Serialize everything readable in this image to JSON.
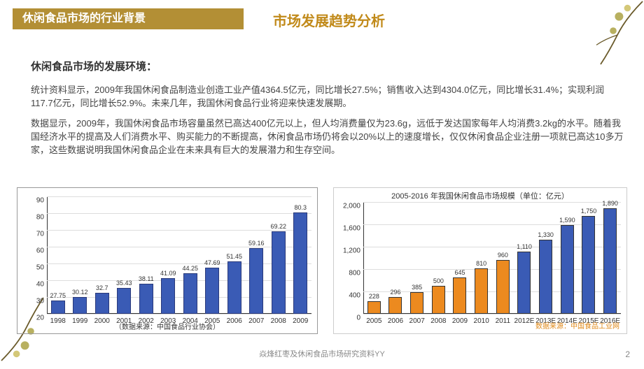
{
  "header_bar": "休闲食品市场的行业背景",
  "title2": "市场发展趋势分析",
  "subheading": "休闲食品市场的发展环境：",
  "para1": "统计资料显示，2009年我国休闲食品制造业创造工业产值4364.5亿元，同比增长27.5%；销售收入达到4304.0亿元，同比增长31.4%；实现利润117.7亿元，同比增长52.9%。未来几年，我国休闲食品行业将迎来快速发展期。",
  "para2": "数据显示，2009年，我国休闲食品市场容量虽然已高达400亿元以上，但人均消费量仅为23.6g，远低于发达国家每年人均消费3.2kg的水平。随着我国经济水平的提高及人们消费水平、购买能力的不断提高，休闲食品市场仍将会以20%以上的速度增长，仅仅休闲食品企业注册一项就已高达10多万家，这些数据说明我国休闲食品企业在未来具有巨大的发展潜力和生存空间。",
  "chart1": {
    "type": "bar",
    "categories": [
      "1998",
      "1999",
      "2000",
      "2001",
      "2002",
      "2003",
      "2004",
      "2005",
      "2006",
      "2007",
      "2008",
      "2009"
    ],
    "values": [
      27.75,
      30.12,
      32.7,
      35.43,
      38.11,
      41.09,
      44.25,
      47.69,
      51.45,
      59.16,
      69.22,
      80.3
    ],
    "value_labels": [
      "27.75",
      "30.12",
      "32.7",
      "35.43",
      "38.11",
      "41.09",
      "44.25",
      "47.69",
      "51.45",
      "59.16",
      "69.22",
      "80.3"
    ],
    "bar_color": "#3a5bb5",
    "bar_border": "#2a3a7a",
    "ylim": [
      20,
      90
    ],
    "ytick_step": 10,
    "grid_color": "#dddddd",
    "source": "（数据来源：中国食品行业协会）"
  },
  "chart2": {
    "type": "bar",
    "title": "2005-2016 年我国休闲食品市场规模（单位：亿元）",
    "categories": [
      "2005",
      "2006",
      "2007",
      "2008",
      "2009",
      "2010",
      "2011",
      "2012E",
      "2013E",
      "2014E",
      "2015E",
      "2016E"
    ],
    "values": [
      228,
      296,
      385,
      500,
      645,
      810,
      960,
      1110,
      1330,
      1590,
      1750,
      1890
    ],
    "value_labels": [
      "228",
      "296",
      "385",
      "500",
      "645",
      "810",
      "960",
      "1,110",
      "1,330",
      "1,590",
      "1,750",
      "1,890"
    ],
    "colors_split_index": 7,
    "color_past": "#ec8a1f",
    "color_future": "#3a5bb5",
    "bar_border": "#333333",
    "ylim": [
      0,
      2000
    ],
    "ytick_step": 400,
    "ytick_labels": [
      "0",
      "400",
      "800",
      "1,200",
      "1,600",
      "2,000"
    ],
    "grid_color": "#dddddd",
    "source": "数据来源：中国食品工业网"
  },
  "footer": "焱烽红枣及休闲食品市场研究资料YY",
  "page_num": "2"
}
